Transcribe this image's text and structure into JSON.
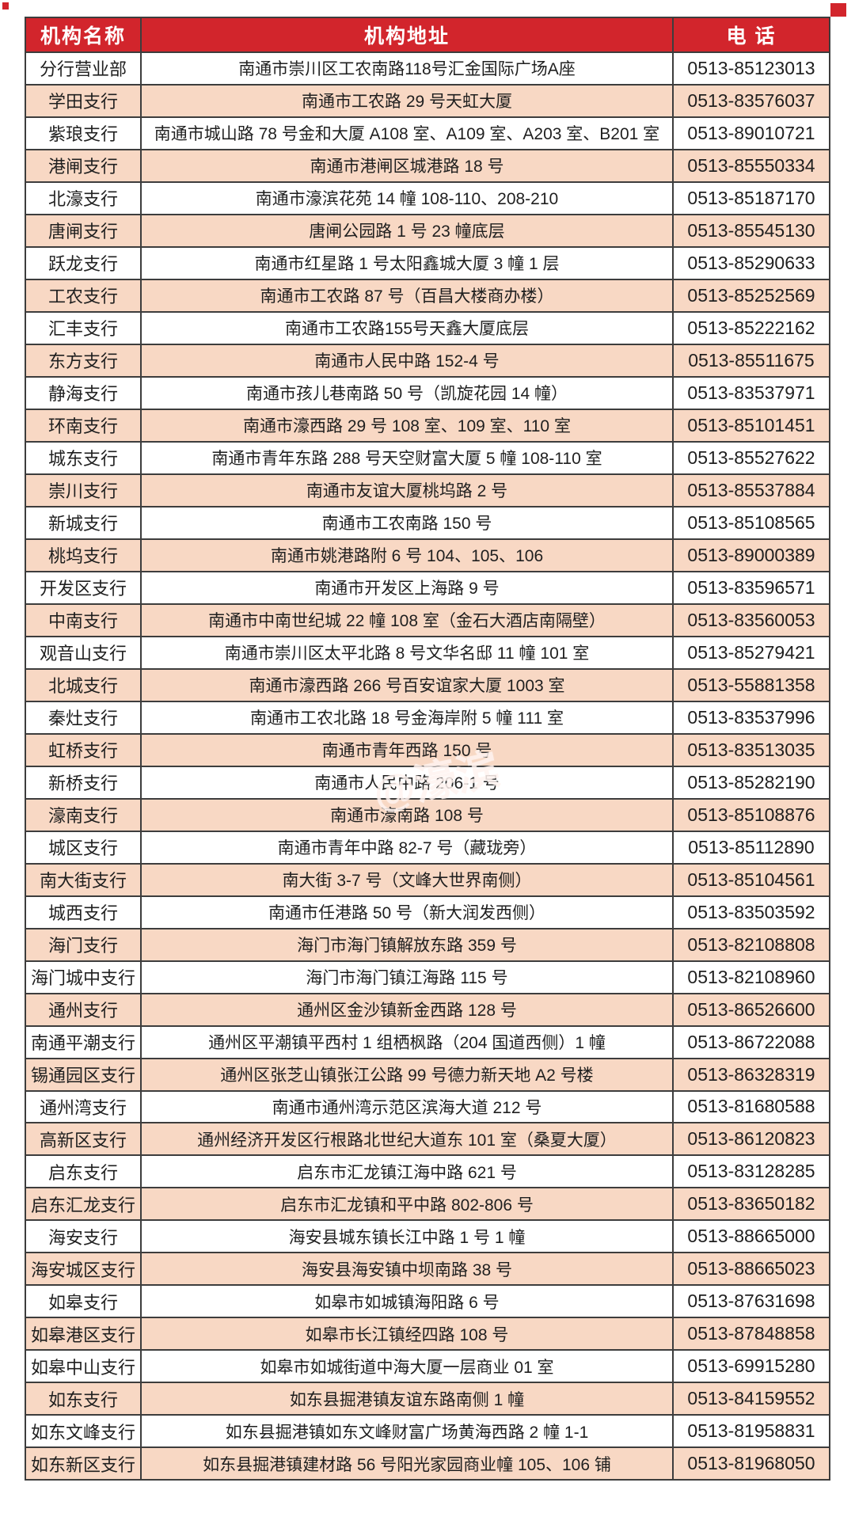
{
  "colors": {
    "header_bg": "#d2252c",
    "header_text": "#ffffff",
    "row_pink": "#f8d8c4",
    "row_white": "#ffffff",
    "border": "#3d3d3d",
    "body_text": "#1f1f1f"
  },
  "watermark": {
    "text": "@濠滨"
  },
  "table": {
    "columns": [
      "机构名称",
      "机构地址",
      "电 话"
    ],
    "rows": [
      {
        "name": "分行营业部",
        "address": "南通市崇川区工农南路118号汇金国际广场A座",
        "phone": "0513-85123013"
      },
      {
        "name": "学田支行",
        "address": "南通市工农路 29 号天虹大厦",
        "phone": "0513-83576037"
      },
      {
        "name": "紫琅支行",
        "address": "南通市城山路 78 号金和大厦 A108 室、A109 室、A203 室、B201 室",
        "phone": "0513-89010721"
      },
      {
        "name": "港闸支行",
        "address": "南通市港闸区城港路 18 号",
        "phone": "0513-85550334"
      },
      {
        "name": "北濠支行",
        "address": "南通市濠滨花苑 14 幢 108-110、208-210",
        "phone": "0513-85187170"
      },
      {
        "name": "唐闸支行",
        "address": "唐闸公园路 1 号 23 幢底层",
        "phone": "0513-85545130"
      },
      {
        "name": "跃龙支行",
        "address": "南通市红星路 1 号太阳鑫城大厦 3 幢 1 层",
        "phone": "0513-85290633"
      },
      {
        "name": "工农支行",
        "address": "南通市工农路 87 号（百昌大楼商办楼）",
        "phone": "0513-85252569"
      },
      {
        "name": "汇丰支行",
        "address": "南通市工农路155号天鑫大厦底层",
        "phone": "0513-85222162"
      },
      {
        "name": "东方支行",
        "address": "南通市人民中路 152-4 号",
        "phone": "0513-85511675"
      },
      {
        "name": "静海支行",
        "address": "南通市孩儿巷南路 50 号（凯旋花园 14 幢）",
        "phone": "0513-83537971"
      },
      {
        "name": "环南支行",
        "address": "南通市濠西路 29 号 108 室、109 室、110 室",
        "phone": "0513-85101451"
      },
      {
        "name": "城东支行",
        "address": "南通市青年东路 288 号天空财富大厦 5 幢 108-110 室",
        "phone": "0513-85527622"
      },
      {
        "name": "崇川支行",
        "address": "南通市友谊大厦桃坞路 2 号",
        "phone": "0513-85537884"
      },
      {
        "name": "新城支行",
        "address": "南通市工农南路 150 号",
        "phone": "0513-85108565"
      },
      {
        "name": "桃坞支行",
        "address": "南通市姚港路附 6 号 104、105、106",
        "phone": "0513-89000389"
      },
      {
        "name": "开发区支行",
        "address": "南通市开发区上海路 9 号",
        "phone": "0513-83596571"
      },
      {
        "name": "中南支行",
        "address": "南通市中南世纪城 22 幢 108 室（金石大酒店南隔壁）",
        "phone": "0513-83560053"
      },
      {
        "name": "观音山支行",
        "address": "南通市崇川区太平北路 8 号文华名邸 11 幢 101 室",
        "phone": "0513-85279421"
      },
      {
        "name": "北城支行",
        "address": "南通市濠西路 266 号百安谊家大厦 1003 室",
        "phone": "0513-55881358"
      },
      {
        "name": "秦灶支行",
        "address": "南通市工农北路 18 号金海岸附 5 幢 111 室",
        "phone": "0513-83537996"
      },
      {
        "name": "虹桥支行",
        "address": "南通市青年西路 150 号",
        "phone": "0513-83513035"
      },
      {
        "name": "新桥支行",
        "address": "南通市人民中路 206-1 号",
        "phone": "0513-85282190"
      },
      {
        "name": "濠南支行",
        "address": "南通市濠南路 108 号",
        "phone": "0513-85108876"
      },
      {
        "name": "城区支行",
        "address": "南通市青年中路 82-7 号（藏珑旁）",
        "phone": "0513-85112890"
      },
      {
        "name": "南大街支行",
        "address": "南大街 3-7 号（文峰大世界南侧）",
        "phone": "0513-85104561"
      },
      {
        "name": "城西支行",
        "address": "南通市任港路 50 号（新大润发西侧）",
        "phone": "0513-83503592"
      },
      {
        "name": "海门支行",
        "address": "海门市海门镇解放东路 359 号",
        "phone": "0513-82108808"
      },
      {
        "name": "海门城中支行",
        "address": "海门市海门镇江海路 115 号",
        "phone": "0513-82108960"
      },
      {
        "name": "通州支行",
        "address": "通州区金沙镇新金西路 128 号",
        "phone": "0513-86526600"
      },
      {
        "name": "南通平潮支行",
        "address": "通州区平潮镇平西村 1 组栖枫路（204 国道西侧）1 幢",
        "phone": "0513-86722088"
      },
      {
        "name": "锡通园区支行",
        "address": "通州区张芝山镇张江公路 99 号德力新天地 A2 号楼",
        "phone": "0513-86328319"
      },
      {
        "name": "通州湾支行",
        "address": "南通市通州湾示范区滨海大道 212 号",
        "phone": "0513-81680588"
      },
      {
        "name": "高新区支行",
        "address": "通州经济开发区行根路北世纪大道东 101 室（桑夏大厦）",
        "phone": "0513-86120823"
      },
      {
        "name": "启东支行",
        "address": "启东市汇龙镇江海中路 621 号",
        "phone": "0513-83128285"
      },
      {
        "name": "启东汇龙支行",
        "address": "启东市汇龙镇和平中路 802-806 号",
        "phone": "0513-83650182"
      },
      {
        "name": "海安支行",
        "address": "海安县城东镇长江中路 1 号 1 幢",
        "phone": "0513-88665000"
      },
      {
        "name": "海安城区支行",
        "address": "海安县海安镇中坝南路 38 号",
        "phone": "0513-88665023"
      },
      {
        "name": "如皋支行",
        "address": "如皋市如城镇海阳路 6 号",
        "phone": "0513-87631698"
      },
      {
        "name": "如皋港区支行",
        "address": "如皋市长江镇经四路 108 号",
        "phone": "0513-87848858"
      },
      {
        "name": "如皋中山支行",
        "address": "如皋市如城街道中海大厦一层商业 01 室",
        "phone": "0513-69915280"
      },
      {
        "name": "如东支行",
        "address": "如东县掘港镇友谊东路南侧 1 幢",
        "phone": "0513-84159552"
      },
      {
        "name": "如东文峰支行",
        "address": "如东县掘港镇如东文峰财富广场黄海西路 2 幢 1-1",
        "phone": "0513-81958831"
      },
      {
        "name": "如东新区支行",
        "address": "如东县掘港镇建材路 56 号阳光家园商业幢 105、106 铺",
        "phone": "0513-81968050"
      }
    ]
  }
}
